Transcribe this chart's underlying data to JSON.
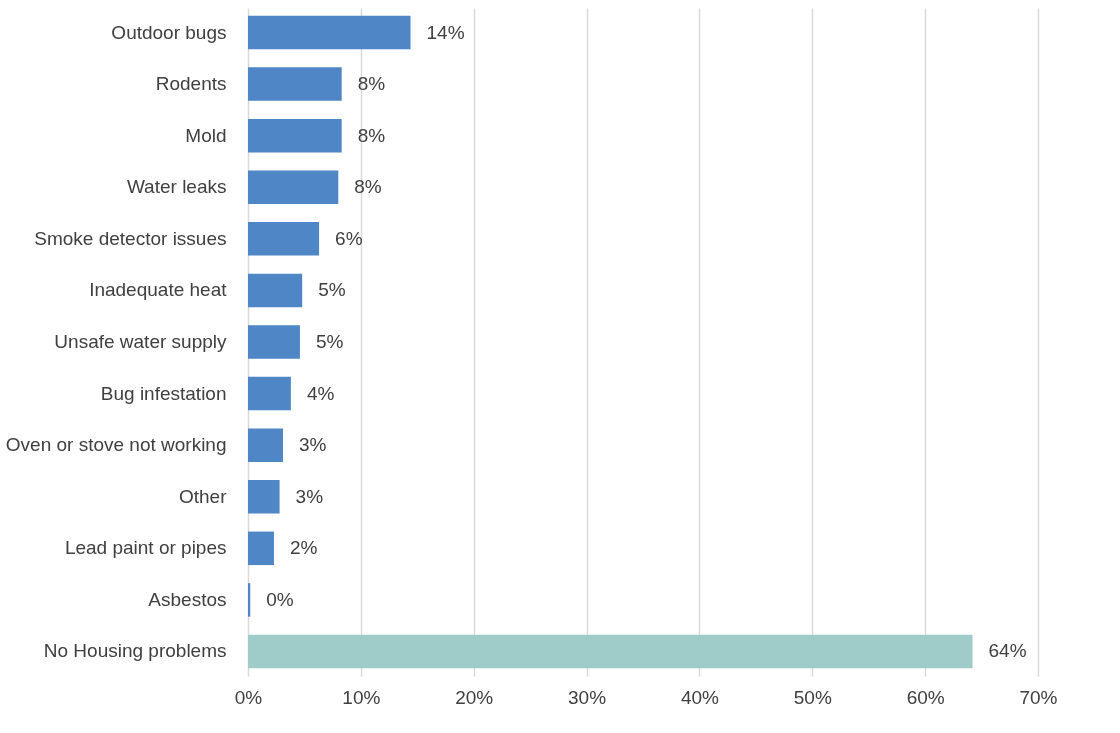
{
  "chart_data": {
    "type": "bar",
    "orientation": "horizontal",
    "categories": [
      "Outdoor bugs",
      "Rodents",
      "Mold",
      "Water leaks",
      "Smoke detector issues",
      "Inadequate heat",
      "Unsafe water supply",
      "Bug infestation",
      "Oven or stove not working",
      "Other",
      "Lead paint or pipes",
      "Asbestos",
      "No Housing problems"
    ],
    "values": [
      14.4,
      8.3,
      8.3,
      8.0,
      6.3,
      4.8,
      4.6,
      3.8,
      3.1,
      2.8,
      2.3,
      0.2,
      64.2
    ],
    "value_labels": [
      "14%",
      "8%",
      "8%",
      "8%",
      "6%",
      "5%",
      "5%",
      "4%",
      "3%",
      "3%",
      "2%",
      "0%",
      "64%"
    ],
    "colors": [
      "#4e86c6",
      "#4e86c6",
      "#4e86c6",
      "#4e86c6",
      "#4e86c6",
      "#4e86c6",
      "#4e86c6",
      "#4e86c6",
      "#4e86c6",
      "#4e86c6",
      "#4e86c6",
      "#4e86c6",
      "#9fcbc9"
    ],
    "xlim": [
      0,
      70
    ],
    "xticks": [
      {
        "value": 0,
        "label": "0%"
      },
      {
        "value": 10,
        "label": "10%"
      },
      {
        "value": 20,
        "label": "20%"
      },
      {
        "value": 30,
        "label": "30%"
      },
      {
        "value": 40,
        "label": "40%"
      },
      {
        "value": 50,
        "label": "50%"
      },
      {
        "value": 60,
        "label": "60%"
      },
      {
        "value": 70,
        "label": "70%"
      }
    ],
    "grid": "x"
  }
}
